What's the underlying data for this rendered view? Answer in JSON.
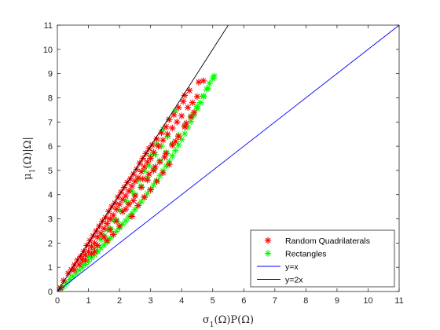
{
  "chart_data": {
    "type": "scatter",
    "title": "",
    "xlabel": "σ1(Ω)P(Ω)",
    "ylabel": "μ1(Ω)|Ω|",
    "xlim": [
      0,
      11
    ],
    "ylim": [
      0,
      11
    ],
    "xticks": [
      "0",
      "1",
      "2",
      "3",
      "4",
      "5",
      "6",
      "7",
      "8",
      "9",
      "10",
      "11"
    ],
    "yticks": [
      "0",
      "1",
      "2",
      "3",
      "4",
      "5",
      "6",
      "7",
      "8",
      "9",
      "10",
      "11"
    ],
    "grid": false,
    "legend_position": "bottom-right",
    "series": [
      {
        "name": "Random Quadrilaterals",
        "kind": "scatter",
        "marker": "asterisk",
        "color": "#ff0000",
        "points": [
          [
            0.1,
            0.15
          ],
          [
            0.2,
            0.45
          ],
          [
            0.35,
            0.75
          ],
          [
            0.45,
            0.9
          ],
          [
            0.55,
            1.1
          ],
          [
            0.65,
            1.3
          ],
          [
            0.75,
            1.45
          ],
          [
            0.85,
            1.65
          ],
          [
            0.95,
            1.9
          ],
          [
            1.05,
            2.1
          ],
          [
            1.15,
            2.3
          ],
          [
            1.25,
            2.5
          ],
          [
            1.35,
            2.7
          ],
          [
            1.45,
            2.9
          ],
          [
            1.55,
            3.05
          ],
          [
            1.65,
            3.3
          ],
          [
            1.75,
            3.5
          ],
          [
            1.85,
            3.65
          ],
          [
            1.95,
            3.9
          ],
          [
            2.05,
            4.1
          ],
          [
            2.15,
            4.3
          ],
          [
            2.25,
            4.5
          ],
          [
            2.35,
            4.65
          ],
          [
            2.45,
            4.85
          ],
          [
            2.55,
            5.05
          ],
          [
            2.65,
            5.3
          ],
          [
            2.75,
            5.5
          ],
          [
            2.85,
            5.7
          ],
          [
            2.95,
            5.9
          ],
          [
            3.05,
            6.05
          ],
          [
            3.2,
            6.3
          ],
          [
            3.35,
            6.55
          ],
          [
            3.5,
            6.8
          ],
          [
            3.6,
            7.1
          ],
          [
            3.75,
            7.3
          ],
          [
            3.9,
            7.6
          ],
          [
            4.05,
            7.85
          ],
          [
            4.1,
            8.1
          ],
          [
            4.25,
            8.3
          ],
          [
            4.55,
            8.65
          ],
          [
            4.7,
            8.7
          ],
          [
            0.55,
            0.9
          ],
          [
            0.7,
            1.1
          ],
          [
            0.8,
            1.3
          ],
          [
            0.9,
            1.5
          ],
          [
            1.0,
            1.65
          ],
          [
            1.1,
            1.85
          ],
          [
            1.2,
            2.0
          ],
          [
            1.3,
            2.25
          ],
          [
            1.4,
            2.4
          ],
          [
            1.5,
            2.6
          ],
          [
            1.6,
            2.8
          ],
          [
            1.7,
            3.0
          ],
          [
            1.8,
            3.15
          ],
          [
            1.9,
            3.4
          ],
          [
            2.0,
            3.6
          ],
          [
            2.1,
            3.8
          ],
          [
            2.2,
            3.95
          ],
          [
            2.3,
            4.15
          ],
          [
            2.4,
            4.35
          ],
          [
            2.5,
            4.55
          ],
          [
            2.6,
            4.7
          ],
          [
            2.7,
            4.95
          ],
          [
            2.8,
            5.15
          ],
          [
            2.9,
            5.35
          ],
          [
            3.0,
            5.5
          ],
          [
            3.1,
            5.75
          ],
          [
            3.25,
            6.0
          ],
          [
            3.4,
            6.25
          ],
          [
            3.55,
            6.5
          ],
          [
            3.7,
            6.75
          ],
          [
            3.85,
            7.0
          ],
          [
            4.0,
            7.25
          ],
          [
            4.2,
            7.6
          ],
          [
            4.35,
            7.8
          ],
          [
            4.5,
            8.05
          ],
          [
            0.9,
            1.3
          ],
          [
            1.1,
            1.55
          ],
          [
            1.3,
            1.9
          ],
          [
            1.5,
            2.25
          ],
          [
            1.7,
            2.55
          ],
          [
            1.9,
            2.9
          ],
          [
            2.1,
            3.3
          ],
          [
            2.3,
            3.6
          ],
          [
            2.5,
            3.95
          ],
          [
            2.7,
            4.3
          ],
          [
            2.9,
            4.6
          ],
          [
            3.1,
            5.0
          ],
          [
            3.3,
            5.35
          ],
          [
            3.5,
            5.7
          ],
          [
            3.7,
            6.05
          ],
          [
            3.9,
            6.4
          ],
          [
            4.1,
            6.8
          ],
          [
            4.3,
            7.2
          ],
          [
            1.2,
            1.65
          ],
          [
            1.6,
            2.1
          ],
          [
            2.0,
            2.7
          ],
          [
            2.4,
            3.1
          ],
          [
            2.6,
            3.55
          ],
          [
            2.8,
            3.9
          ],
          [
            3.0,
            4.2
          ],
          [
            3.2,
            4.55
          ],
          [
            3.4,
            4.9
          ],
          [
            3.6,
            5.25
          ],
          [
            2.2,
            3.4
          ],
          [
            2.75,
            4.65
          ],
          [
            3.15,
            5.15
          ],
          [
            3.45,
            5.55
          ],
          [
            3.8,
            6.2
          ],
          [
            4.15,
            6.95
          ],
          [
            4.4,
            7.4
          ],
          [
            2.95,
            4.85
          ],
          [
            1.8,
            2.35
          ],
          [
            2.45,
            3.75
          ]
        ]
      },
      {
        "name": "Rectangles",
        "kind": "scatter",
        "marker": "asterisk",
        "color": "#00ff00",
        "points": [
          [
            0.1,
            0.1
          ],
          [
            0.2,
            0.2
          ],
          [
            0.3,
            0.35
          ],
          [
            0.4,
            0.5
          ],
          [
            0.5,
            0.62
          ],
          [
            0.6,
            0.75
          ],
          [
            0.7,
            0.88
          ],
          [
            0.8,
            1.0
          ],
          [
            0.9,
            1.12
          ],
          [
            1.0,
            1.25
          ],
          [
            1.1,
            1.4
          ],
          [
            1.2,
            1.52
          ],
          [
            1.3,
            1.65
          ],
          [
            1.4,
            1.8
          ],
          [
            1.5,
            1.92
          ],
          [
            1.6,
            2.05
          ],
          [
            1.7,
            2.2
          ],
          [
            1.8,
            2.35
          ],
          [
            1.9,
            2.48
          ],
          [
            2.0,
            2.62
          ],
          [
            2.1,
            2.78
          ],
          [
            2.2,
            2.92
          ],
          [
            2.3,
            3.08
          ],
          [
            2.4,
            3.22
          ],
          [
            2.5,
            3.38
          ],
          [
            2.6,
            3.55
          ],
          [
            2.7,
            3.7
          ],
          [
            2.8,
            3.88
          ],
          [
            2.9,
            4.05
          ],
          [
            3.0,
            4.22
          ],
          [
            3.1,
            4.4
          ],
          [
            3.2,
            4.58
          ],
          [
            3.3,
            4.78
          ],
          [
            3.4,
            4.98
          ],
          [
            3.5,
            5.18
          ],
          [
            3.6,
            5.38
          ],
          [
            3.7,
            5.6
          ],
          [
            3.8,
            5.82
          ],
          [
            3.9,
            6.05
          ],
          [
            4.0,
            6.28
          ],
          [
            4.1,
            6.52
          ],
          [
            4.2,
            6.78
          ],
          [
            4.3,
            7.02
          ],
          [
            4.4,
            7.28
          ],
          [
            4.5,
            7.55
          ],
          [
            4.6,
            7.8
          ],
          [
            4.7,
            8.08
          ],
          [
            4.8,
            8.35
          ],
          [
            4.9,
            8.6
          ],
          [
            5.0,
            8.8
          ],
          [
            5.05,
            8.9
          ],
          [
            1.5,
            2.3
          ],
          [
            1.7,
            2.6
          ],
          [
            1.9,
            2.95
          ],
          [
            2.1,
            3.3
          ],
          [
            2.3,
            3.65
          ],
          [
            2.5,
            4.0
          ],
          [
            2.7,
            4.35
          ],
          [
            2.9,
            4.7
          ],
          [
            3.1,
            5.05
          ],
          [
            3.3,
            5.4
          ],
          [
            3.5,
            5.75
          ],
          [
            3.7,
            6.1
          ],
          [
            3.9,
            6.45
          ],
          [
            4.1,
            6.85
          ],
          [
            4.3,
            7.25
          ],
          [
            4.5,
            7.65
          ],
          [
            4.7,
            8.05
          ],
          [
            4.85,
            8.4
          ],
          [
            2.95,
            5.2
          ],
          [
            3.15,
            5.65
          ],
          [
            3.35,
            6.0
          ],
          [
            3.55,
            6.4
          ],
          [
            3.4,
            6.7
          ],
          [
            3.6,
            7.1
          ],
          [
            3.8,
            7.45
          ],
          [
            3.2,
            6.1
          ],
          [
            3.0,
            5.6
          ],
          [
            2.8,
            5.0
          ],
          [
            2.6,
            4.6
          ],
          [
            2.4,
            4.15
          ],
          [
            2.2,
            3.75
          ],
          [
            2.0,
            3.35
          ],
          [
            1.8,
            2.95
          ],
          [
            1.6,
            2.55
          ],
          [
            1.4,
            2.15
          ],
          [
            1.2,
            1.8
          ],
          [
            1.0,
            1.45
          ],
          [
            0.8,
            1.15
          ]
        ]
      },
      {
        "name": "y=x",
        "kind": "line",
        "color": "#0000ff",
        "points": [
          [
            0,
            0
          ],
          [
            11,
            11
          ]
        ]
      },
      {
        "name": "y=2x",
        "kind": "line",
        "color": "#000000",
        "points": [
          [
            0,
            0
          ],
          [
            5.5,
            11
          ]
        ]
      }
    ]
  }
}
